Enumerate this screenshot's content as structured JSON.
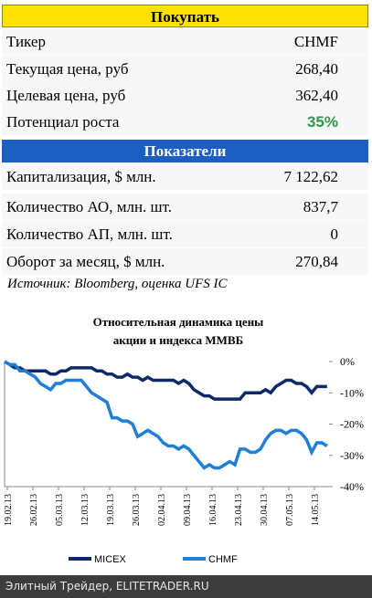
{
  "buy": {
    "title": "Покупать",
    "rows": [
      [
        "Тикер",
        "CHMF"
      ],
      [
        "Текущая цена, руб",
        "268,40"
      ],
      [
        "Целевая цена, руб",
        "362,40"
      ],
      [
        "Потенциал роста",
        "35%"
      ]
    ]
  },
  "indicators": {
    "title": "Показатели",
    "rows": [
      [
        "Капитализация, $ млн.",
        "7 122,62"
      ],
      [
        "Количество АО, млн. шт.",
        "837,7"
      ],
      [
        "Количество АП, млн. шт.",
        "0"
      ],
      [
        "Оборот за месяц, $ млн.",
        "270,84"
      ]
    ]
  },
  "source": "Источник: Bloomberg, оценка UFS IC",
  "chart_data": {
    "type": "line",
    "title": [
      "Относительная динамика цены",
      "акции и индекса ММВБ"
    ],
    "categories": [
      "19.02.13",
      null,
      null,
      null,
      null,
      "26.02.13",
      null,
      null,
      null,
      null,
      "05.03.13",
      null,
      null,
      null,
      null,
      "12.03.13",
      null,
      null,
      null,
      null,
      "19.03.13",
      null,
      null,
      null,
      null,
      "26.03.13",
      null,
      null,
      null,
      null,
      "02.04.13",
      null,
      null,
      null,
      null,
      "09.04.13",
      null,
      null,
      null,
      null,
      "16.04.13",
      null,
      null,
      null,
      null,
      "23.04.13",
      null,
      null,
      null,
      null,
      "30.04.13",
      null,
      null,
      null,
      null,
      "07.05.13",
      null,
      null,
      null,
      null,
      "14.05.13",
      null,
      null,
      null
    ],
    "series": [
      {
        "name": "MICEX",
        "color": "#0d2a66",
        "values": [
          0,
          -1,
          -2,
          -2,
          -3,
          -3,
          -3,
          -3,
          -3,
          -4,
          -4,
          -3,
          -3,
          -2,
          -2,
          -2,
          -2,
          -2,
          -3,
          -3,
          -4,
          -4,
          -5,
          -5,
          -4,
          -5,
          -5,
          -6,
          -5,
          -6,
          -6,
          -6,
          -6,
          -6,
          -7,
          -6,
          -7,
          -9,
          -10,
          -11,
          -11,
          -12,
          -12,
          -12,
          -12,
          -12,
          -12,
          -10,
          -10,
          -10,
          -10,
          -9,
          -10,
          -8,
          -7,
          -6,
          -6,
          -7,
          -7,
          -8,
          -10,
          -8,
          -8,
          -8
        ]
      },
      {
        "name": "CHMF",
        "color": "#1f7fd6",
        "values": [
          0,
          -1,
          -1,
          -3,
          -3,
          -4,
          -5,
          -7,
          -8,
          -9,
          -7,
          -7,
          -6,
          -6,
          -6,
          -6,
          -8,
          -10,
          -11,
          -12,
          -13,
          -18,
          -18,
          -19,
          -19,
          -20,
          -24,
          -23,
          -22,
          -23,
          -24,
          -26,
          -27,
          -27,
          -28,
          -27,
          -28,
          -30,
          -32,
          -34,
          -33,
          -34,
          -34,
          -33,
          -32,
          -33,
          -28,
          -28,
          -29,
          -29,
          -28,
          -25,
          -23,
          -22,
          -22,
          -23,
          -22,
          -22,
          -23,
          -25,
          -29,
          -26,
          -26,
          -27
        ]
      }
    ],
    "ylim": [
      -40,
      0
    ],
    "yticks": [
      {
        "value": 0,
        "label": "0%"
      },
      {
        "value": -10,
        "label": "-10%"
      },
      {
        "value": -20,
        "label": "-20%"
      },
      {
        "value": -30,
        "label": "-30%"
      },
      {
        "value": -40,
        "label": "-40%"
      }
    ]
  },
  "footer": "Элитный Трейдер, ELITETRADER.RU"
}
